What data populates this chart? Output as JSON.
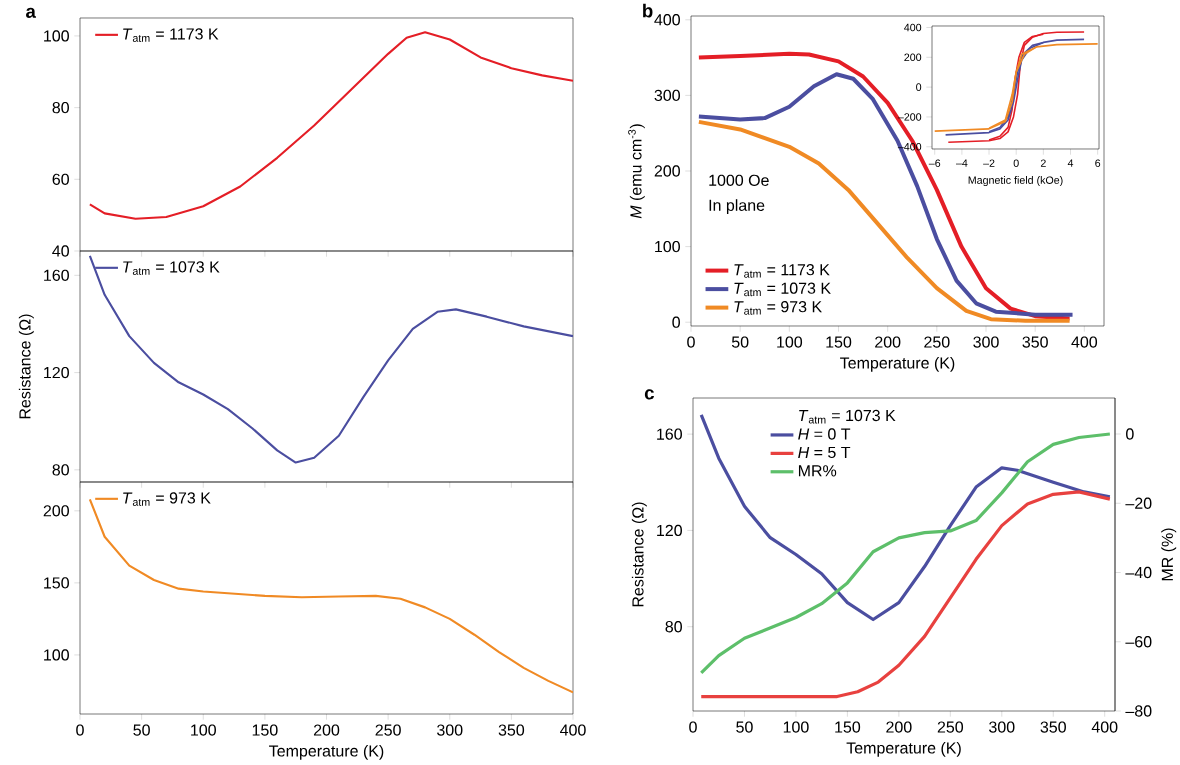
{
  "chart_data": [
    {
      "type": "line",
      "annotations": [
        "a"
      ],
      "xlim": [
        0,
        400
      ],
      "ylim": [
        40,
        105
      ],
      "xticks": [
        0,
        50,
        100,
        150,
        200,
        250,
        300,
        350,
        400
      ],
      "yticks": [
        40,
        60,
        80,
        100
      ],
      "tick_labels": "y",
      "legend": "top left",
      "series": [
        {
          "name": "*T*$_{atm}$ = 1173 K",
          "color": "#e41e26",
          "x": [
            8,
            20,
            45,
            70,
            100,
            130,
            160,
            190,
            220,
            250,
            265,
            280,
            300,
            325,
            350,
            375,
            400
          ],
          "values": [
            53,
            50.5,
            49,
            49.5,
            52.5,
            58,
            66,
            75,
            85,
            95,
            99.5,
            101,
            99,
            94,
            91,
            89,
            87.5
          ]
        }
      ]
    },
    {
      "type": "line",
      "ylabel": "Resistance (Ω)",
      "xlim": [
        0,
        400
      ],
      "ylim": [
        75,
        170
      ],
      "xticks": [
        0,
        50,
        100,
        150,
        200,
        250,
        300,
        350,
        400
      ],
      "yticks": [
        80,
        120,
        160
      ],
      "tick_labels": "y",
      "legend": "top left",
      "series": [
        {
          "name": "*T*$_{atm}$ = 1073 K",
          "color": "#4b4ea0",
          "x": [
            8,
            20,
            40,
            60,
            80,
            100,
            120,
            140,
            160,
            175,
            190,
            210,
            230,
            250,
            270,
            290,
            305,
            330,
            360,
            400
          ],
          "values": [
            168,
            152,
            135,
            124,
            116,
            111,
            105,
            97,
            88,
            83,
            85,
            94,
            110,
            125,
            138,
            145,
            146,
            143,
            139,
            135
          ]
        }
      ]
    },
    {
      "type": "line",
      "xlabel": "Temperature (K)",
      "xlim": [
        0,
        400
      ],
      "ylim": [
        59,
        220
      ],
      "xticks": [
        0,
        50,
        100,
        150,
        200,
        250,
        300,
        350,
        400
      ],
      "yticks": [
        100,
        150,
        200
      ],
      "legend": "top left",
      "series": [
        {
          "name": "*T*$_{atm}$ = 973 K",
          "color": "#f08a24",
          "x": [
            8,
            20,
            40,
            60,
            80,
            100,
            150,
            180,
            210,
            240,
            260,
            280,
            300,
            320,
            340,
            360,
            380,
            400
          ],
          "values": [
            208,
            182,
            162,
            152,
            146,
            144,
            141,
            140,
            140.5,
            141,
            139,
            133,
            125,
            114,
            102,
            91,
            82,
            74
          ]
        }
      ]
    },
    {
      "type": "line",
      "annotations": [
        "b",
        "1000 Oe",
        "In plane"
      ],
      "xlabel": "Temperature (K)",
      "ylabel": "*M* (emu cm$^{-3}$)",
      "xlim": [
        0,
        420
      ],
      "ylim": [
        -5,
        405
      ],
      "xticks": [
        0,
        50,
        100,
        150,
        200,
        250,
        300,
        350,
        400
      ],
      "yticks": [
        0,
        100,
        200,
        300,
        400
      ],
      "legend": "bottom left",
      "series": [
        {
          "name": "*T*$_{atm}$ = 1173 K",
          "color": "#e41e26",
          "x": [
            8,
            50,
            100,
            120,
            150,
            175,
            200,
            225,
            250,
            275,
            300,
            325,
            350,
            385
          ],
          "values": [
            350,
            352,
            355,
            354,
            345,
            325,
            290,
            240,
            175,
            100,
            45,
            18,
            8,
            5
          ]
        },
        {
          "name": "*T*$_{atm}$ = 1073 K",
          "color": "#4b4ea0",
          "x": [
            8,
            50,
            75,
            100,
            125,
            148,
            165,
            185,
            210,
            230,
            250,
            270,
            290,
            310,
            350,
            388
          ],
          "values": [
            272,
            268,
            270,
            285,
            312,
            328,
            322,
            295,
            240,
            180,
            110,
            55,
            25,
            14,
            10,
            10
          ]
        },
        {
          "name": "*T*$_{atm}$ = 973 K",
          "color": "#f08a24",
          "x": [
            8,
            50,
            100,
            130,
            160,
            190,
            220,
            250,
            280,
            305,
            340,
            385
          ],
          "values": [
            265,
            255,
            232,
            210,
            175,
            130,
            85,
            45,
            15,
            4,
            2,
            2
          ]
        }
      ]
    },
    {
      "type": "line",
      "xlabel": "Magnetic field (kOe)",
      "xlim": [
        -6.2,
        6.1
      ],
      "ylim": [
        -415,
        410
      ],
      "xticks": [
        {
          "value": -6,
          "label": "–6"
        },
        {
          "value": -4,
          "label": "–4"
        },
        {
          "value": -2,
          "label": "–2"
        },
        0,
        2,
        4,
        6
      ],
      "yticks": [
        {
          "value": -400,
          "label": "–400"
        },
        {
          "value": -200,
          "label": "–200"
        },
        0,
        200,
        400
      ],
      "series": [
        {
          "color": "#e41e26",
          "x": [
            -5,
            -2,
            -1.2,
            -0.6,
            -0.2,
            0.1,
            0.3,
            0.6,
            1.2,
            2,
            3,
            5
          ],
          "values": [
            -370,
            -360,
            -345,
            -300,
            -200,
            -50,
            150,
            280,
            335,
            360,
            368,
            370
          ]
        },
        {
          "color": "#e41e26",
          "x": [
            -2,
            -1.2,
            -0.6,
            -0.3,
            -0.1,
            0.2,
            0.6,
            1.2,
            2
          ],
          "values": [
            -355,
            -330,
            -270,
            -150,
            50,
            200,
            300,
            340,
            355
          ]
        },
        {
          "color": "#4b4ea0",
          "x": [
            -5.2,
            -2,
            -1.2,
            -0.6,
            -0.2,
            0.1,
            0.4,
            1,
            2,
            3,
            5
          ],
          "values": [
            -320,
            -305,
            -280,
            -220,
            -100,
            50,
            180,
            260,
            300,
            315,
            320
          ]
        },
        {
          "color": "#4b4ea0",
          "x": [
            -2,
            -1.2,
            -0.6,
            -0.2,
            0.1,
            0.5,
            1.2,
            2
          ],
          "values": [
            -300,
            -270,
            -200,
            -50,
            100,
            220,
            280,
            300
          ]
        },
        {
          "color": "#f08a24",
          "x": [
            -6,
            -2,
            -0.8,
            -0.3,
            0,
            0.6,
            1.5,
            3,
            6
          ],
          "values": [
            -295,
            -280,
            -230,
            -100,
            100,
            220,
            270,
            285,
            290
          ]
        },
        {
          "color": "#f08a24",
          "x": [
            -2,
            -0.8,
            -0.3,
            0,
            0.4,
            1.5
          ],
          "values": [
            -275,
            -220,
            -50,
            100,
            220,
            270
          ]
        }
      ]
    },
    {
      "type": "line",
      "annotations": [
        "c"
      ],
      "xlabel": "Temperature (K)",
      "ylabel": "Resistance (Ω)",
      "y2label": "MR (%)",
      "legend_title": "*T*$_{atm}$ = 1073 K",
      "legend": "top left",
      "xlim": [
        0,
        410
      ],
      "ylim": [
        45,
        175
      ],
      "y2lim": [
        -80,
        10.4
      ],
      "xticks": [
        0,
        50,
        100,
        150,
        200,
        250,
        300,
        350,
        400
      ],
      "yticks": [
        80,
        120,
        160
      ],
      "y2ticks": [
        {
          "value": -80,
          "label": "–80"
        },
        {
          "value": -60,
          "label": "–60"
        },
        {
          "value": -40,
          "label": "–40"
        },
        {
          "value": -20,
          "label": "–20"
        },
        0
      ],
      "series": [
        {
          "name": "*H* = 0 T",
          "color": "#4b4ea0",
          "x": [
            8,
            25,
            50,
            75,
            100,
            125,
            150,
            175,
            200,
            225,
            250,
            275,
            300,
            315,
            350,
            380,
            405
          ],
          "values": [
            168,
            150,
            130,
            117,
            110,
            102,
            90,
            83,
            90,
            105,
            122,
            138,
            146,
            145,
            140,
            136,
            134
          ]
        },
        {
          "name": "*H* = 5 T",
          "color": "#e8413f",
          "x": [
            8,
            50,
            100,
            140,
            160,
            180,
            200,
            225,
            250,
            275,
            300,
            325,
            350,
            375,
            405
          ],
          "values": [
            51,
            51,
            51,
            51,
            53,
            57,
            64,
            76,
            92,
            108,
            122,
            131,
            135,
            136,
            133
          ]
        },
        {
          "name": "MR%",
          "color": "#5dbf6a",
          "axis": "y2",
          "x": [
            8,
            25,
            50,
            75,
            100,
            125,
            150,
            175,
            200,
            225,
            250,
            275,
            300,
            325,
            350,
            375,
            405
          ],
          "values": [
            -69,
            -64,
            -59,
            -56,
            -53,
            -49,
            -43,
            -34,
            -30,
            -28.5,
            -28,
            -25,
            -17,
            -8,
            -3,
            -1,
            0
          ]
        }
      ]
    }
  ]
}
